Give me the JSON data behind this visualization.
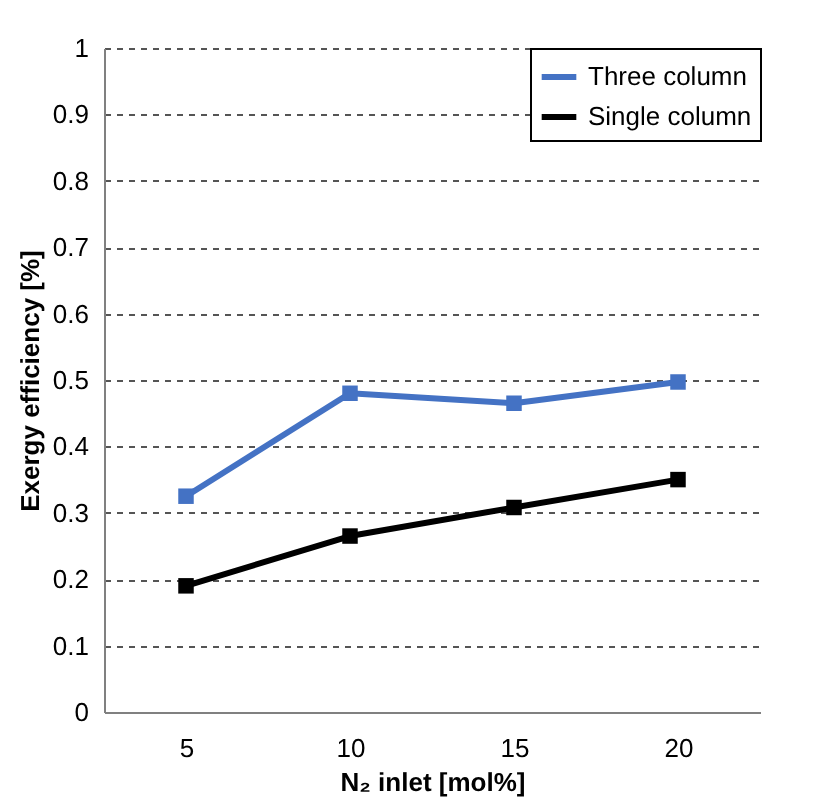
{
  "chart_data": {
    "type": "line",
    "xlabel": "N₂ inlet [mol%]",
    "ylabel": "Exergy efficiency [%]",
    "categories": [
      "5",
      "10",
      "15",
      "20"
    ],
    "series": [
      {
        "name": "Three column",
        "color": "#4472c4",
        "values": [
          0.325,
          0.48,
          0.465,
          0.497
        ]
      },
      {
        "name": "Single column",
        "color": "#000000",
        "values": [
          0.19,
          0.265,
          0.308,
          0.35
        ]
      }
    ],
    "ylim": [
      0,
      1
    ],
    "yticks": [
      0,
      0.1,
      0.2,
      0.3,
      0.4,
      0.5,
      0.6,
      0.7,
      0.8,
      0.9,
      1
    ],
    "grid": "y",
    "legend": "top right",
    "marker": "square",
    "line_style": "solid"
  }
}
